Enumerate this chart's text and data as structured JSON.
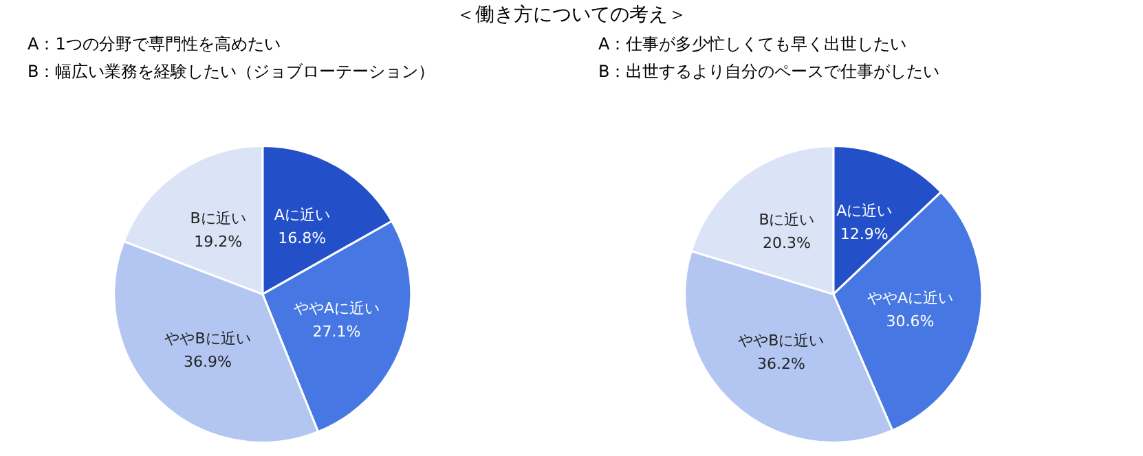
{
  "chart_data": [
    {
      "type": "pie",
      "title": "＜働き方についての考え＞",
      "annotations": [
        "A：1つの分野で専門性を高めたい",
        "B：幅広い業務を経験したい（ジョブローテーション）"
      ],
      "categories": [
        "Aに近い",
        "ややAに近い",
        "ややBに近い",
        "Bに近い"
      ],
      "values": [
        16.8,
        27.1,
        36.9,
        19.2
      ],
      "value_labels": [
        "16.8%",
        "27.1%",
        "36.9%",
        "19.2%"
      ],
      "colors": [
        "#2350c8",
        "#4677e2",
        "#b3c6f1",
        "#dbe3f7"
      ]
    },
    {
      "type": "pie",
      "annotations": [
        "A：仕事が多少忙しくても早く出世したい",
        "B：出世するより自分のペースで仕事がしたい"
      ],
      "categories": [
        "Aに近い",
        "ややAに近い",
        "ややBに近い",
        "Bに近い"
      ],
      "values": [
        12.9,
        30.6,
        36.2,
        20.3
      ],
      "value_labels": [
        "12.9%",
        "30.6%",
        "36.2%",
        "20.3%"
      ],
      "colors": [
        "#2350c8",
        "#4677e2",
        "#b3c6f1",
        "#dbe3f7"
      ]
    }
  ]
}
